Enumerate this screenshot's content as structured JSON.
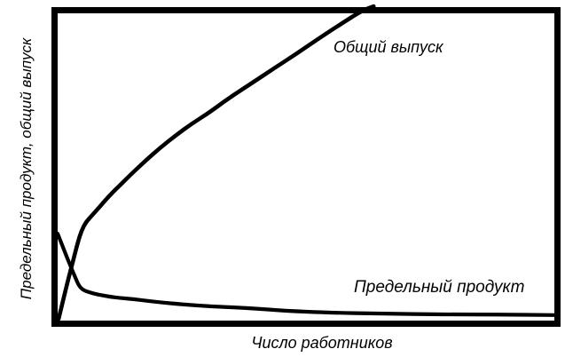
{
  "figure": {
    "background_color": "#ffffff",
    "ink_color": "#000000",
    "y_axis_label": "Предельный продукт, общий выпуск",
    "x_axis_label": "Число работников"
  },
  "chart_data": {
    "type": "line",
    "title": "",
    "xlabel": "Число работников",
    "ylabel": "Предельный продукт, общий выпуск",
    "axes": {
      "x_range": [
        0,
        100
      ],
      "y_range": [
        0,
        100
      ],
      "units": "normalized (no numeric ticks or gridlines shown)",
      "grid": false,
      "tick_labels": "none",
      "frame": "full box border"
    },
    "legend": {
      "position": "inline annotations on curves"
    },
    "series": [
      {
        "name": "Общий выпуск",
        "shape": "concave increasing from origin, exits through top border",
        "points": [
          [
            0.2,
            0.3
          ],
          [
            1.1,
            6.4
          ],
          [
            2.1,
            13.0
          ],
          [
            3.2,
            19.7
          ],
          [
            4.1,
            25.5
          ],
          [
            4.8,
            29.0
          ],
          [
            5.7,
            31.9
          ],
          [
            7.0,
            34.2
          ],
          [
            8.6,
            37.1
          ],
          [
            10.3,
            40.3
          ],
          [
            12.5,
            43.8
          ],
          [
            14.8,
            47.5
          ],
          [
            17.7,
            51.9
          ],
          [
            20.7,
            56.2
          ],
          [
            23.9,
            60.3
          ],
          [
            27.1,
            64.1
          ],
          [
            30.7,
            67.8
          ],
          [
            34.6,
            72.5
          ],
          [
            39.0,
            77.1
          ],
          [
            43.5,
            82.0
          ],
          [
            48.0,
            86.7
          ],
          [
            52.4,
            91.6
          ],
          [
            57.0,
            96.5
          ],
          [
            61.3,
            100.9
          ],
          [
            63.6,
            102.3
          ]
        ]
      },
      {
        "name": "Предельный продукт",
        "shape": "starts on y-axis, steep decline, kink, then long nearly flat declining tail",
        "points": [
          [
            0.0,
            28.1
          ],
          [
            0.9,
            24.4
          ],
          [
            1.8,
            20.6
          ],
          [
            2.7,
            17.1
          ],
          [
            3.6,
            13.6
          ],
          [
            4.3,
            11.0
          ],
          [
            5.2,
            9.6
          ],
          [
            6.8,
            8.7
          ],
          [
            9.1,
            7.9
          ],
          [
            11.8,
            7.2
          ],
          [
            15.3,
            6.7
          ],
          [
            19.8,
            5.8
          ],
          [
            25.1,
            5.0
          ],
          [
            31.4,
            4.3
          ],
          [
            38.5,
            3.8
          ],
          [
            45.6,
            2.9
          ],
          [
            54.5,
            2.3
          ],
          [
            65.2,
            2.0
          ],
          [
            77.7,
            1.7
          ],
          [
            88.4,
            1.7
          ],
          [
            100.0,
            1.5
          ]
        ]
      }
    ]
  }
}
